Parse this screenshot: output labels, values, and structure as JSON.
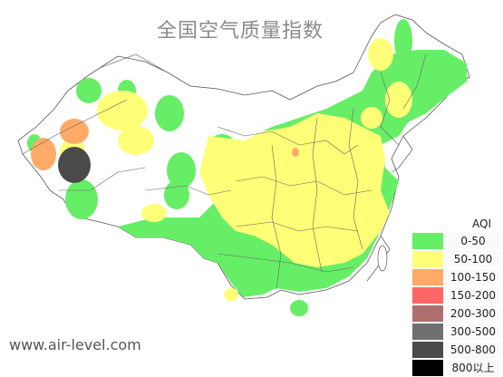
{
  "title": "全国空气质量指数",
  "watermark": "www.air-level.com",
  "legend": {
    "title": "AQI",
    "items": [
      {
        "label": "0-50",
        "color": "#66ee66"
      },
      {
        "label": "50-100",
        "color": "#ffff77"
      },
      {
        "label": "100-150",
        "color": "#ffaa66"
      },
      {
        "label": "150-200",
        "color": "#ff6666"
      },
      {
        "label": "200-300",
        "color": "#b06f6f"
      },
      {
        "label": "300-500",
        "color": "#707070"
      },
      {
        "label": "500-800",
        "color": "#4a4a4a"
      },
      {
        "label": "800以上",
        "color": "#000000"
      }
    ]
  }
}
